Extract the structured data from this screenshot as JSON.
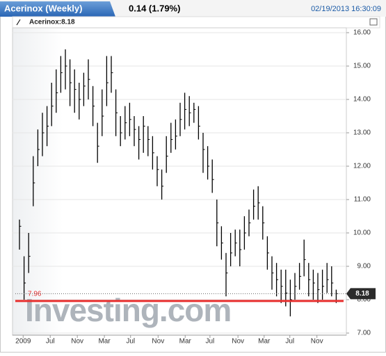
{
  "header": {
    "title": "Acerinox (Weekly)",
    "change": "0.14 (1.79%)",
    "timestamp": "02/19/2013 16:30:09"
  },
  "chart_data": {
    "type": "ohlc",
    "legend": "Acerinox:8.18",
    "color": "#000000",
    "x": [
      0,
      1,
      2,
      3,
      4,
      5,
      6,
      7,
      8,
      9,
      10,
      11,
      12,
      13,
      14,
      15,
      16,
      17,
      18,
      19,
      20,
      21,
      22,
      23,
      24,
      25,
      26,
      27,
      28,
      29,
      30,
      31,
      32,
      33,
      34,
      35,
      36,
      37,
      38,
      39,
      40,
      41,
      42,
      43,
      44,
      45,
      46,
      47,
      48,
      49,
      50,
      51,
      52,
      53,
      54,
      55,
      56,
      57,
      58,
      59,
      60,
      61,
      62,
      63,
      64,
      65,
      66,
      67,
      68,
      69
    ],
    "series": [
      {
        "name": "Acerinox",
        "high": [
          10.4,
          9.3,
          10.0,
          12.3,
          13.1,
          13.6,
          13.8,
          14.5,
          14.9,
          15.3,
          15.5,
          15.2,
          14.9,
          14.5,
          14.8,
          15.2,
          14.4,
          13.3,
          14.3,
          15.3,
          15.3,
          14.3,
          13.5,
          13.8,
          13.9,
          13.5,
          13.2,
          13.5,
          13.2,
          12.9,
          12.3,
          11.9,
          12.9,
          13.3,
          13.4,
          13.9,
          14.2,
          14.1,
          13.9,
          13.8,
          13.0,
          12.6,
          12.2,
          11.0,
          10.2,
          9.4,
          10.0,
          10.1,
          10.1,
          10.5,
          10.7,
          11.3,
          11.4,
          10.8,
          9.9,
          9.3,
          9.1,
          8.9,
          8.9,
          8.6,
          8.8,
          9.1,
          9.8,
          9.1,
          8.9,
          8.8,
          8.9,
          9.1,
          9.0,
          8.3
        ],
        "low": [
          9.5,
          8.0,
          8.8,
          10.8,
          12.0,
          12.3,
          12.6,
          13.2,
          13.6,
          14.2,
          14.3,
          13.8,
          13.6,
          13.4,
          13.8,
          14.0,
          13.2,
          12.1,
          12.9,
          13.8,
          14.2,
          12.9,
          12.6,
          12.8,
          12.9,
          12.6,
          12.2,
          12.4,
          12.3,
          11.9,
          11.4,
          11.0,
          11.8,
          12.4,
          12.5,
          12.9,
          13.1,
          13.2,
          13.3,
          12.8,
          11.8,
          11.6,
          11.2,
          9.6,
          9.2,
          8.1,
          9.0,
          9.3,
          9.0,
          9.5,
          9.9,
          10.4,
          10.4,
          9.8,
          8.9,
          8.3,
          8.1,
          7.9,
          7.8,
          7.5,
          8.0,
          8.3,
          8.7,
          8.1,
          8.0,
          7.9,
          8.0,
          8.2,
          8.1,
          7.9
        ],
        "close": [
          10.2,
          8.5,
          9.3,
          11.5,
          12.5,
          13.0,
          13.2,
          13.8,
          14.2,
          14.8,
          15.0,
          14.5,
          14.3,
          14.0,
          14.4,
          14.6,
          13.8,
          12.6,
          13.5,
          14.5,
          14.8,
          13.6,
          13.0,
          13.3,
          13.4,
          13.1,
          12.8,
          13.2,
          12.8,
          12.4,
          11.9,
          11.4,
          12.3,
          12.8,
          12.9,
          13.4,
          13.7,
          13.6,
          13.7,
          13.2,
          12.5,
          12.0,
          11.6,
          10.3,
          9.7,
          8.8,
          9.4,
          9.7,
          9.5,
          10.0,
          10.3,
          10.8,
          10.9,
          10.3,
          9.4,
          8.8,
          8.6,
          8.4,
          8.2,
          8.0,
          8.4,
          8.7,
          9.2,
          8.6,
          8.5,
          8.3,
          8.4,
          8.6,
          8.5,
          8.18
        ]
      }
    ],
    "xlim": [
      0,
      70
    ],
    "xticks": [
      {
        "value": 0.8,
        "label": "2009"
      },
      {
        "value": 6.7,
        "label": "Jul"
      },
      {
        "value": 12.6,
        "label": "Nov"
      },
      {
        "value": 18.5,
        "label": "Mar"
      },
      {
        "value": 24.2,
        "label": "Jul"
      },
      {
        "value": 30.2,
        "label": "Nov"
      },
      {
        "value": 36.1,
        "label": "Mar"
      },
      {
        "value": 41.5,
        "label": "Jul"
      },
      {
        "value": 47.6,
        "label": "Nov"
      },
      {
        "value": 53.3,
        "label": "Mar"
      },
      {
        "value": 58.9,
        "label": "Jul"
      },
      {
        "value": 64.8,
        "label": "Nov"
      }
    ],
    "ylim": [
      7,
      16
    ],
    "yticks": [
      {
        "value": 7,
        "label": "7.00"
      },
      {
        "value": 8,
        "label": "8.00"
      },
      {
        "value": 9,
        "label": "9.00"
      },
      {
        "value": 10,
        "label": "10.00"
      },
      {
        "value": 11,
        "label": "11.00"
      },
      {
        "value": 12,
        "label": "12.00"
      },
      {
        "value": 13,
        "label": "13.00"
      },
      {
        "value": 14,
        "label": "14.00"
      },
      {
        "value": 15,
        "label": "15.00"
      },
      {
        "value": 16,
        "label": "16.00"
      }
    ],
    "grid": true,
    "support": {
      "value": 7.96,
      "label": "7.96",
      "color": "#e8302f"
    },
    "last": {
      "value": 8.18,
      "label": "8.18"
    },
    "watermark": "Investing.com"
  }
}
